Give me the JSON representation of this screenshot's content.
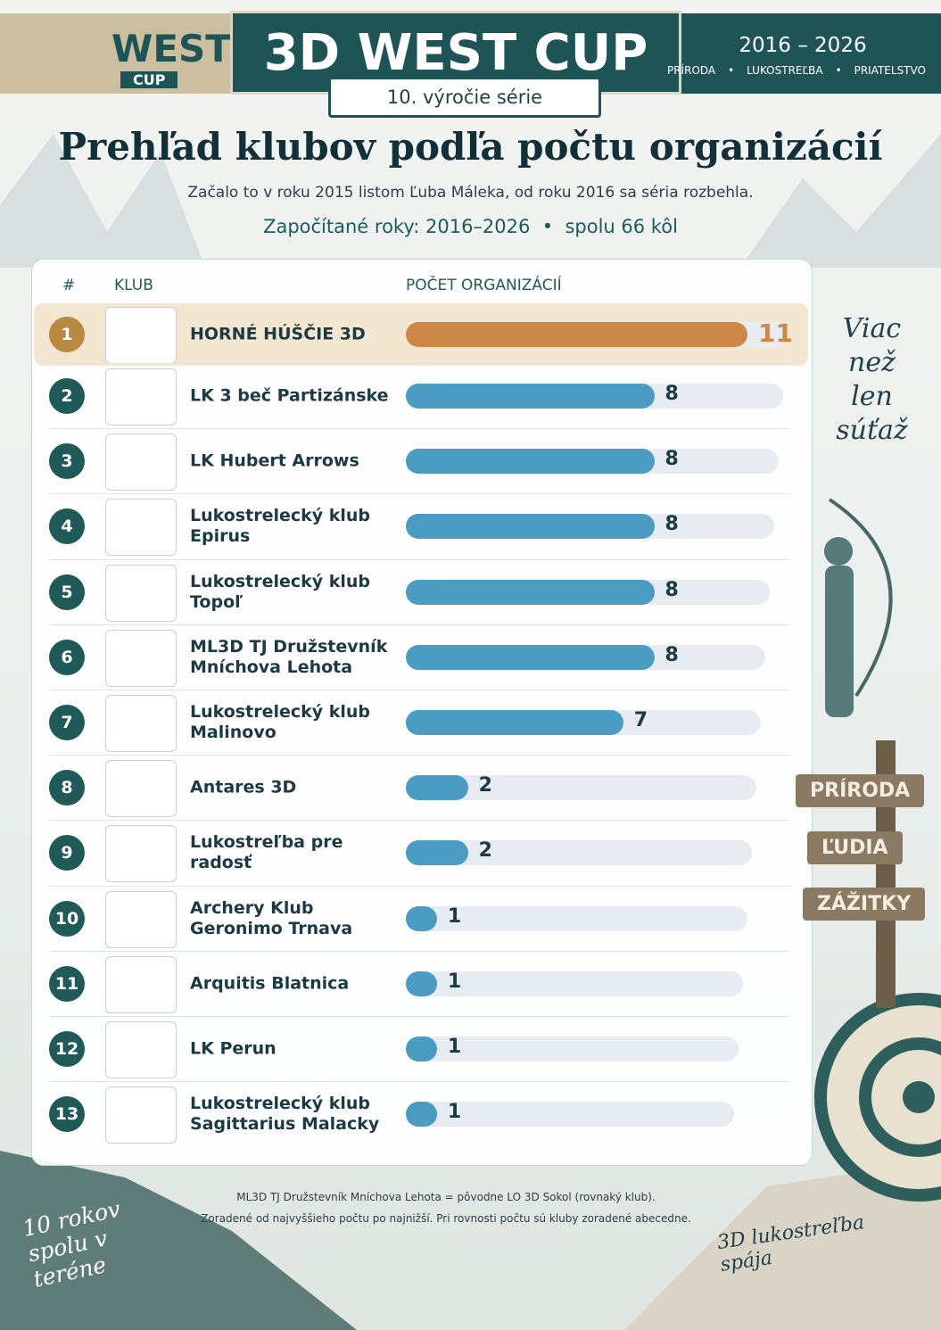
{
  "header": {
    "logo_word": "WEST",
    "logo_sub": "CUP",
    "title": "3D WEST CUP",
    "ribbon": "10. výročie série",
    "years": "2016 – 2026",
    "motto": [
      "PRÍRODA",
      "LUKOSTREĽBA",
      "PRIATELSTVO"
    ]
  },
  "chart_data": {
    "type": "bar",
    "orientation": "horizontal",
    "title": "Prehľad klubov podľa počtu organizácií",
    "subtitle": "Začalo to v roku 2015 listom Ľuba Máleka, od roku 2016 sa séria rozbehla.",
    "counted_years": "Započítané roky: 2016–2026",
    "total_rounds": "spolu 66 kôl",
    "column_headers": [
      "#",
      "KLUB",
      "POČET ORGANIZÁCIÍ"
    ],
    "ranks": [
      1,
      2,
      3,
      4,
      5,
      6,
      7,
      8,
      9,
      10,
      11,
      12,
      13
    ],
    "categories": [
      "HORNÉ HÚŠČIE 3D",
      "LK 3 beč Partizánske",
      "LK Hubert Arrows",
      "Lukostrelecký klub Epirus",
      "Lukostrelecký klub Topoľ",
      "ML3D TJ Družstevník Mníchova Lehota",
      "Lukostrelecký klub Malinovo",
      "Antares 3D",
      "Lukostreľba pre radosť",
      "Archery Klub Geronimo Trnava",
      "Arquitis Blatnica",
      "LK Perun",
      "Lukostrelecký klub Sagittarius Malacky"
    ],
    "values": [
      11,
      8,
      8,
      8,
      8,
      8,
      7,
      2,
      2,
      1,
      1,
      1,
      1
    ],
    "color": "#4a9cc2",
    "highlight_color": "#cf8747",
    "footnotes": [
      "ML3D TJ Družstevník Mníchova Lehota = pôvodne LO 3D Sokol (rovnaký klub).",
      "Zoradené od najvyššieho počtu po najnižší. Pri rovnosti počtu sú kluby zoradené abecedne."
    ]
  },
  "decor": {
    "side_note": "Viac než len súťaž",
    "signs": [
      "PRÍRODA",
      "ĽUDIA",
      "ZÁŽITKY"
    ],
    "left_slogan": "10 rokov spolu v teréne",
    "right_slogan": "3D lukostreľba spája"
  }
}
